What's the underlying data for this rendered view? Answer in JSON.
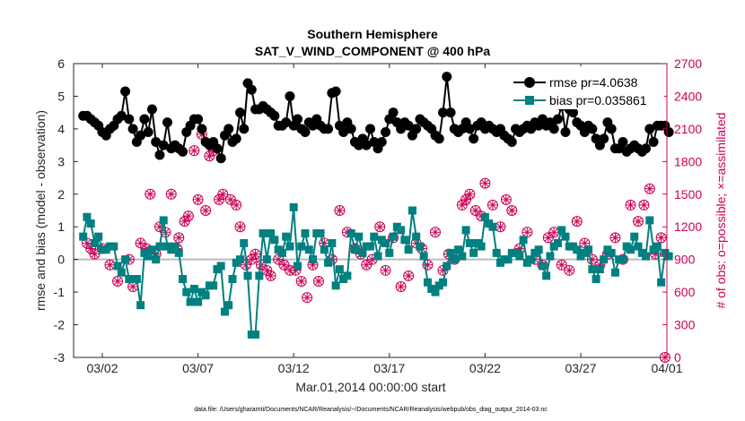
{
  "chart_data": {
    "type": "line",
    "title_line1": "Southern Hemisphere",
    "title_line2": "SAT_V_WIND_COMPONENT @ 400 hPa",
    "xlabel": "Mar.01,2014 00:00:00 start",
    "ylabel_left": "rmse and bias (model - observation)",
    "ylabel_right": "# of obs: o=possible; ×=assimilated",
    "footnote": "data file: /Users/gharamti/Documents/NCAR/Reanalysis/~/Documents/NCAR/Reanalysis/webpub/obs_diag_output_2014-03.nc",
    "xlim": [
      0.5,
      31.5
    ],
    "ylim_left": [
      -3,
      6
    ],
    "ylim_right": [
      0,
      2700
    ],
    "x_ticks": [
      {
        "x": 2,
        "label": "03/02"
      },
      {
        "x": 7,
        "label": "03/07"
      },
      {
        "x": 12,
        "label": "03/12"
      },
      {
        "x": 17,
        "label": "03/17"
      },
      {
        "x": 22,
        "label": "03/22"
      },
      {
        "x": 27,
        "label": "03/27"
      },
      {
        "x": 32,
        "label": "04/01"
      }
    ],
    "y_ticks_left": [
      "-3",
      "-2",
      "-1",
      "0",
      "1",
      "2",
      "3",
      "4",
      "5",
      "6"
    ],
    "y_ticks_right": [
      "0",
      "300",
      "600",
      "900",
      "1200",
      "1500",
      "1800",
      "2100",
      "2400",
      "2700"
    ],
    "legend_position": "top-right",
    "zero_line": 0,
    "colors": {
      "rmse": "#000000",
      "bias": "#008080",
      "obs": "#cc0055",
      "zero_line": "#bbbbbb",
      "axis": "#262626"
    },
    "series": [
      {
        "name": "rmse pr=4.0638",
        "axis": "left",
        "marker": "circle",
        "values": [
          4.4,
          4.4,
          4.3,
          4.2,
          4.1,
          3.9,
          3.8,
          4.0,
          4.1,
          4.3,
          4.4,
          5.15,
          4.3,
          4.0,
          3.6,
          3.8,
          4.3,
          3.9,
          4.6,
          3.6,
          3.2,
          3.5,
          4.2,
          3.4,
          3.5,
          3.4,
          3.3,
          3.9,
          4.1,
          4.3,
          4.3,
          4.0,
          3.6,
          3.5,
          3.6,
          3.4,
          3.1,
          3.8,
          4.0,
          3.6,
          3.7,
          4.5,
          4.0,
          5.4,
          5.2,
          4.6,
          4.6,
          4.7,
          4.6,
          4.5,
          4.4,
          4.1,
          4.1,
          4.2,
          5.0,
          4.1,
          4.3,
          4.0,
          3.9,
          4.2,
          4.1,
          4.3,
          4.1,
          4.0,
          4.0,
          5.1,
          5.15,
          4.1,
          3.9,
          4.2,
          4.0,
          3.6,
          3.5,
          3.7,
          3.5,
          4.0,
          3.6,
          3.4,
          3.6,
          3.9,
          4.3,
          4.5,
          4.2,
          4.0,
          4.2,
          4.1,
          3.8,
          4.0,
          4.3,
          4.2,
          4.1,
          4.0,
          3.8,
          3.7,
          4.5,
          5.6,
          4.5,
          4.0,
          3.9,
          4.0,
          4.2,
          4.0,
          3.7,
          4.1,
          4.2,
          4.0,
          4.1,
          4.0,
          3.9,
          4.0,
          3.8,
          3.7,
          3.6,
          4.0,
          3.9,
          4.0,
          4.1,
          4.0,
          4.2,
          4.1,
          4.3,
          4.1,
          4.2,
          4.0,
          4.3,
          4.7,
          3.9,
          4.6,
          4.5,
          4.2,
          4.1,
          3.9,
          4.1,
          4.0,
          3.7,
          3.5,
          3.7,
          4.2,
          4.0,
          3.4,
          3.4,
          3.6,
          3.3,
          3.4,
          3.5,
          3.4,
          3.3,
          3.4,
          4.0,
          3.6,
          4.1,
          4.1,
          4.1,
          3.9
        ]
      },
      {
        "name": "bias pr=0.035861",
        "axis": "left",
        "marker": "square",
        "values": [
          0.7,
          1.3,
          1.1,
          0.5,
          0.7,
          0.3,
          0.3,
          0.4,
          0.4,
          -0.2,
          -0.4,
          0.0,
          -0.6,
          -0.6,
          -0.6,
          -1.4,
          0.2,
          0.1,
          0.3,
          0.0,
          0.4,
          1.2,
          0.4,
          0.3,
          0.4,
          0.2,
          -0.6,
          -1.0,
          -1.3,
          -0.9,
          -1.3,
          -1.0,
          -1.1,
          -0.8,
          -0.8,
          -0.3,
          -0.2,
          -1.6,
          -1.4,
          -0.6,
          -0.1,
          0.0,
          0.5,
          -0.5,
          -2.3,
          -2.3,
          -0.5,
          0.8,
          0.0,
          0.8,
          0.6,
          0.3,
          0.2,
          0.7,
          0.4,
          1.6,
          -0.2,
          0.4,
          0.8,
          0.3,
          0.0,
          0.8,
          0.8,
          0.3,
          -0.1,
          0.5,
          -0.8,
          -0.3,
          -0.6,
          -0.5,
          0.8,
          0.3,
          0.7,
          0.2,
          0.4,
          0.4,
          0.7,
          0.1,
          0.6,
          0.5,
          0.2,
          0.7,
          1.0,
          0.9,
          0.6,
          0.3,
          1.5,
          0.7,
          0.4,
          0.1,
          -0.7,
          -0.9,
          -1.0,
          -0.8,
          -0.7,
          -0.2,
          0.2,
          0.0,
          0.3,
          0.1,
          0.9,
          0.5,
          0.2,
          0.5,
          0.4,
          1.3,
          1.1,
          1.0,
          0.2,
          -0.1,
          0.0,
          0.0,
          0.2,
          0.2,
          0.1,
          0.6,
          -0.1,
          0.0,
          0.2,
          0.3,
          -0.2,
          -0.5,
          0.1,
          0.4,
          0.5,
          0.9,
          0.7,
          0.4,
          0.4,
          0.3,
          0.1,
          0.2,
          0.3,
          -0.3,
          -0.6,
          -0.3,
          0.0,
          0.3,
          0.2,
          -0.4,
          0.0,
          0.0,
          0.4,
          0.3,
          0.7,
          0.4,
          0.2,
          0.1,
          1.2,
          0.3,
          0.4,
          -0.7,
          0.2,
          0.1
        ]
      },
      {
        "name": "obs possible",
        "axis": "right",
        "marker": "circle-open",
        "x": [
          1.2,
          1.4,
          1.6,
          2.0,
          2.4,
          2.8,
          3.4,
          3.6,
          4.0,
          4.3,
          4.5,
          4.8,
          5.0,
          5.3,
          5.6,
          5.9,
          6.0,
          6.3,
          6.5,
          6.8,
          7.0,
          7.2,
          7.4,
          7.6,
          7.8,
          8.1,
          8.3,
          8.7,
          9.0,
          9.2,
          9.5,
          9.8,
          10.0,
          10.3,
          10.6,
          10.8,
          11.2,
          11.5,
          11.8,
          12.1,
          12.4,
          12.7,
          13.0,
          13.3,
          13.6,
          14.0,
          14.4,
          14.8,
          15.2,
          15.5,
          15.8,
          16.1,
          16.5,
          16.8,
          17.2,
          17.6,
          18.0,
          18.4,
          18.7,
          19.0,
          19.4,
          19.8,
          20.1,
          20.4,
          20.8,
          21.0,
          21.2,
          21.5,
          21.8,
          22.0,
          22.4,
          22.8,
          23.1,
          23.4,
          23.8,
          24.2,
          24.6,
          25.0,
          25.3,
          25.6,
          26.0,
          26.4,
          26.8,
          27.2,
          27.6,
          28.0,
          28.4,
          28.8,
          29.2,
          29.6,
          30.0,
          30.3,
          30.6,
          30.9,
          31.2,
          31.4
        ],
        "values": [
          1050,
          1000,
          950,
          1000,
          850,
          700,
          900,
          650,
          1050,
          1000,
          1500,
          950,
          1200,
          1150,
          1500,
          1000,
          1100,
          1250,
          1300,
          1900,
          1450,
          2050,
          1350,
          1850,
          1900,
          1450,
          1500,
          1450,
          1400,
          1200,
          850,
          900,
          950,
          850,
          800,
          750,
          900,
          850,
          800,
          800,
          700,
          550,
          850,
          700,
          1050,
          900,
          1350,
          1150,
          1000,
          950,
          850,
          900,
          1200,
          800,
          1100,
          650,
          750,
          1050,
          1000,
          850,
          1150,
          800,
          950,
          900,
          1400,
          1450,
          1500,
          1350,
          1300,
          1600,
          1400,
          1200,
          1450,
          1350,
          1000,
          1150,
          900,
          850,
          1100,
          1150,
          850,
          800,
          1250,
          1050,
          900,
          850,
          950,
          1100,
          900,
          1400,
          1250,
          1400,
          1550,
          950,
          1100,
          0
        ]
      },
      {
        "name": "obs assimilated",
        "axis": "right",
        "marker": "cross",
        "x": [
          1.2,
          1.4,
          1.6,
          2.0,
          2.4,
          2.8,
          3.4,
          3.6,
          4.0,
          4.3,
          4.5,
          4.8,
          5.0,
          5.3,
          5.6,
          5.9,
          6.0,
          6.3,
          6.5,
          6.8,
          7.0,
          7.2,
          7.4,
          7.6,
          7.8,
          8.1,
          8.3,
          8.7,
          9.0,
          9.2,
          9.5,
          9.8,
          10.0,
          10.3,
          10.6,
          10.8,
          11.2,
          11.5,
          11.8,
          12.1,
          12.4,
          12.7,
          13.0,
          13.3,
          13.6,
          14.0,
          14.4,
          14.8,
          15.2,
          15.5,
          15.8,
          16.1,
          16.5,
          16.8,
          17.2,
          17.6,
          18.0,
          18.4,
          18.7,
          19.0,
          19.4,
          19.8,
          20.1,
          20.4,
          20.8,
          21.0,
          21.2,
          21.5,
          21.8,
          22.0,
          22.4,
          22.8,
          23.1,
          23.4,
          23.8,
          24.2,
          24.6,
          25.0,
          25.3,
          25.6,
          26.0,
          26.4,
          26.8,
          27.2,
          27.6,
          28.0,
          28.4,
          28.8,
          29.2,
          29.6,
          30.0,
          30.3,
          30.6,
          30.9,
          31.2,
          31.4
        ],
        "values": [
          1050,
          1000,
          950,
          1000,
          850,
          700,
          900,
          650,
          1050,
          1000,
          1500,
          950,
          1200,
          1150,
          1500,
          1000,
          1100,
          1250,
          1300,
          1900,
          1450,
          2050,
          1350,
          1850,
          1900,
          1450,
          1500,
          1450,
          1400,
          1200,
          850,
          900,
          950,
          850,
          800,
          750,
          900,
          850,
          800,
          800,
          700,
          550,
          850,
          700,
          1050,
          900,
          1350,
          1150,
          1000,
          950,
          850,
          900,
          1200,
          800,
          1100,
          650,
          750,
          1050,
          1000,
          850,
          1150,
          800,
          950,
          900,
          1400,
          1450,
          1500,
          1350,
          1300,
          1600,
          1400,
          1200,
          1450,
          1350,
          1000,
          1150,
          900,
          850,
          1100,
          1150,
          850,
          800,
          1250,
          1050,
          900,
          850,
          950,
          1100,
          900,
          1400,
          1250,
          1400,
          1550,
          950,
          1100,
          0
        ]
      }
    ]
  }
}
